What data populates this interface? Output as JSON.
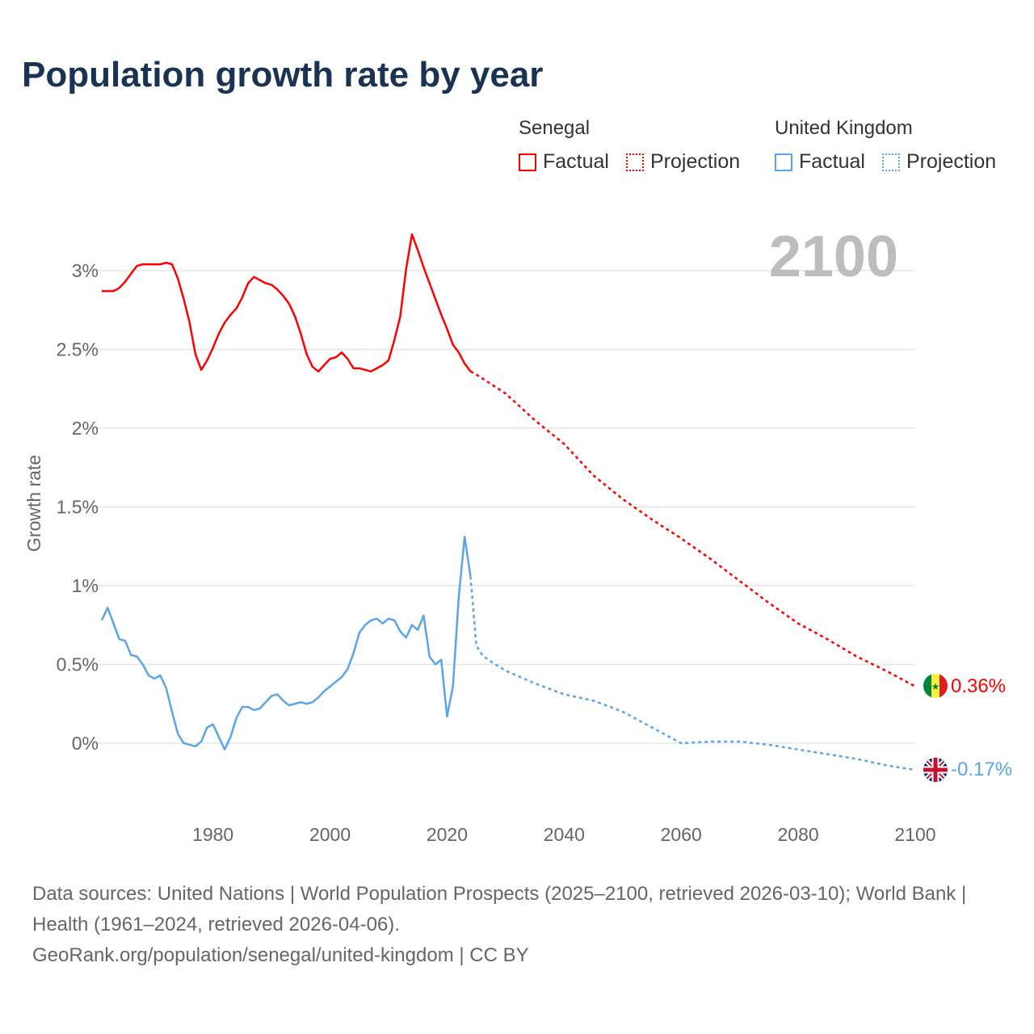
{
  "chart_data": {
    "type": "line",
    "title": "Population growth rate by year",
    "ylabel": "Growth rate",
    "xlabel": "",
    "xlim": [
      1961,
      2100
    ],
    "ylim": [
      -0.35,
      3.35
    ],
    "x_ticks": [
      1980,
      2000,
      2020,
      2040,
      2060,
      2080,
      2100
    ],
    "x_tick_labels": [
      "1980",
      "2000",
      "2020",
      "2040",
      "2060",
      "2080",
      "2100"
    ],
    "y_ticks": [
      0,
      0.5,
      1,
      1.5,
      2,
      2.5,
      3
    ],
    "y_tick_labels": [
      "0%",
      "0.5%",
      "1%",
      "1.5%",
      "2%",
      "2.5%",
      "3%"
    ],
    "year_label": "2100",
    "grid": true,
    "legend": {
      "placement": "top-right",
      "groups": [
        {
          "name": "Senegal",
          "items": [
            "Factual",
            "Projection"
          ]
        },
        {
          "name": "United Kingdom",
          "items": [
            "Factual",
            "Projection"
          ]
        }
      ]
    },
    "series": [
      {
        "name": "Senegal",
        "color": "#ff0000",
        "end_label": "0.36%",
        "factual": {
          "start": 1961,
          "values": [
            2.87,
            2.87,
            2.87,
            2.89,
            2.93,
            2.98,
            3.03,
            3.04,
            3.04,
            3.04,
            3.04,
            3.05,
            3.04,
            2.95,
            2.82,
            2.67,
            2.47,
            2.37,
            2.43,
            2.51,
            2.6,
            2.67,
            2.72,
            2.76,
            2.83,
            2.92,
            2.96,
            2.94,
            2.92,
            2.91,
            2.88,
            2.84,
            2.79,
            2.71,
            2.6,
            2.47,
            2.39,
            2.36,
            2.4,
            2.44,
            2.45,
            2.48,
            2.44,
            2.38,
            2.38,
            2.37,
            2.36,
            2.38,
            2.4,
            2.43,
            2.56,
            2.71,
            3.01,
            3.23,
            3.13,
            3.02,
            2.92,
            2.82,
            2.72,
            2.63,
            2.53,
            2.48,
            2.41,
            2.36
          ]
        },
        "projection": {
          "x": [
            2024,
            2025,
            2030,
            2035,
            2040,
            2045,
            2050,
            2055,
            2060,
            2065,
            2070,
            2075,
            2080,
            2085,
            2090,
            2095,
            2100
          ],
          "values": [
            2.36,
            2.34,
            2.22,
            2.05,
            1.9,
            1.7,
            1.55,
            1.42,
            1.3,
            1.17,
            1.03,
            0.89,
            0.76,
            0.66,
            0.55,
            0.46,
            0.36
          ]
        }
      },
      {
        "name": "United Kingdom",
        "color": "#5aa5ea",
        "end_label": "-0.17%",
        "factual": {
          "start": 1961,
          "values": [
            0.78,
            0.86,
            0.76,
            0.66,
            0.65,
            0.56,
            0.55,
            0.5,
            0.43,
            0.41,
            0.43,
            0.35,
            0.2,
            0.06,
            0.0,
            -0.01,
            -0.02,
            0.01,
            0.1,
            0.12,
            0.04,
            -0.04,
            0.04,
            0.16,
            0.23,
            0.23,
            0.21,
            0.22,
            0.26,
            0.3,
            0.31,
            0.27,
            0.24,
            0.25,
            0.26,
            0.25,
            0.26,
            0.29,
            0.33,
            0.36,
            0.39,
            0.42,
            0.47,
            0.57,
            0.7,
            0.75,
            0.78,
            0.79,
            0.76,
            0.79,
            0.78,
            0.71,
            0.67,
            0.75,
            0.72,
            0.81,
            0.55,
            0.5,
            0.53,
            0.17,
            0.36,
            0.93,
            1.31,
            1.06
          ]
        },
        "projection": {
          "x": [
            2024,
            2025,
            2026,
            2027,
            2030,
            2035,
            2040,
            2045,
            2050,
            2055,
            2060,
            2065,
            2070,
            2075,
            2080,
            2085,
            2090,
            2095,
            2100
          ],
          "values": [
            1.06,
            0.62,
            0.56,
            0.53,
            0.46,
            0.38,
            0.31,
            0.27,
            0.2,
            0.1,
            0.0,
            0.01,
            0.01,
            -0.01,
            -0.04,
            -0.07,
            -0.1,
            -0.14,
            -0.17
          ]
        }
      }
    ]
  },
  "source": {
    "line1": "Data sources: United Nations | World Population Prospects (2025–2100, retrieved 2026-03-10); World Bank | Health (1961–2024, retrieved 2026-04-06).",
    "line2": "GeoRank.org/population/senegal/united-kingdom | CC BY"
  }
}
